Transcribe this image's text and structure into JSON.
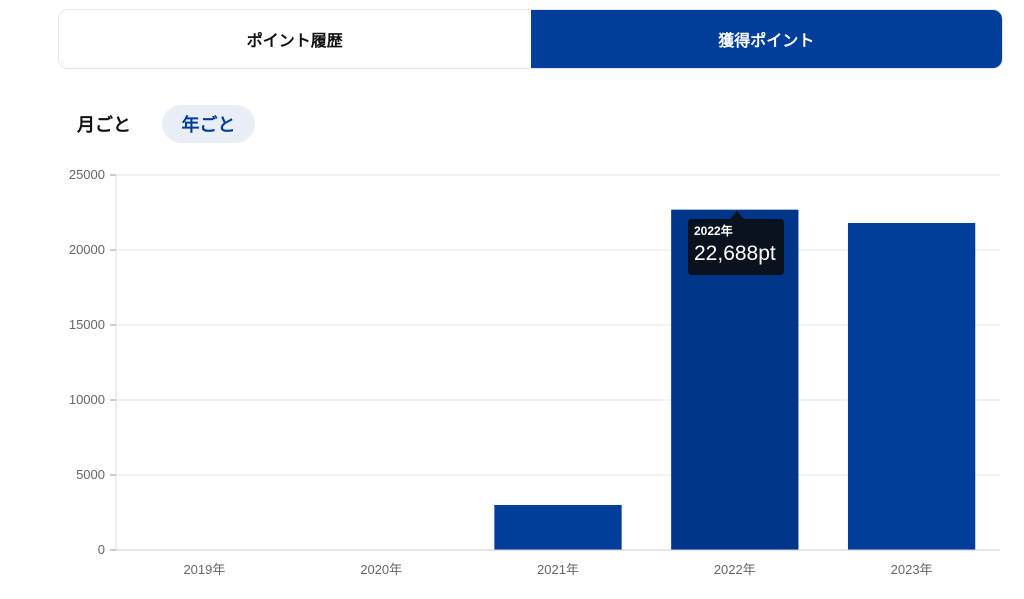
{
  "tabs": [
    {
      "label": "ポイント履歴",
      "active": false
    },
    {
      "label": "獲得ポイント",
      "active": true
    }
  ],
  "period_toggle": {
    "monthly_label": "月ごと",
    "yearly_label": "年ごと",
    "selected": "yearly"
  },
  "colors": {
    "accent": "#003e9b",
    "bar": "#003e9b",
    "bar_hover": "#00368a",
    "tooltip_bg": "#0a1220",
    "grid": "#e6e6e6",
    "toggle_selected_bg": "#e9eef6"
  },
  "chart_data": {
    "type": "bar",
    "categories": [
      "2019年",
      "2020年",
      "2021年",
      "2022年",
      "2023年"
    ],
    "values": [
      0,
      0,
      3000,
      22688,
      21800
    ],
    "ylim": [
      0,
      25000
    ],
    "yticks": [
      0,
      5000,
      10000,
      15000,
      20000,
      25000
    ],
    "grid": true,
    "legend": "none"
  },
  "tooltip": {
    "title": "2022年",
    "value": "22,688pt",
    "category_index": 3
  }
}
